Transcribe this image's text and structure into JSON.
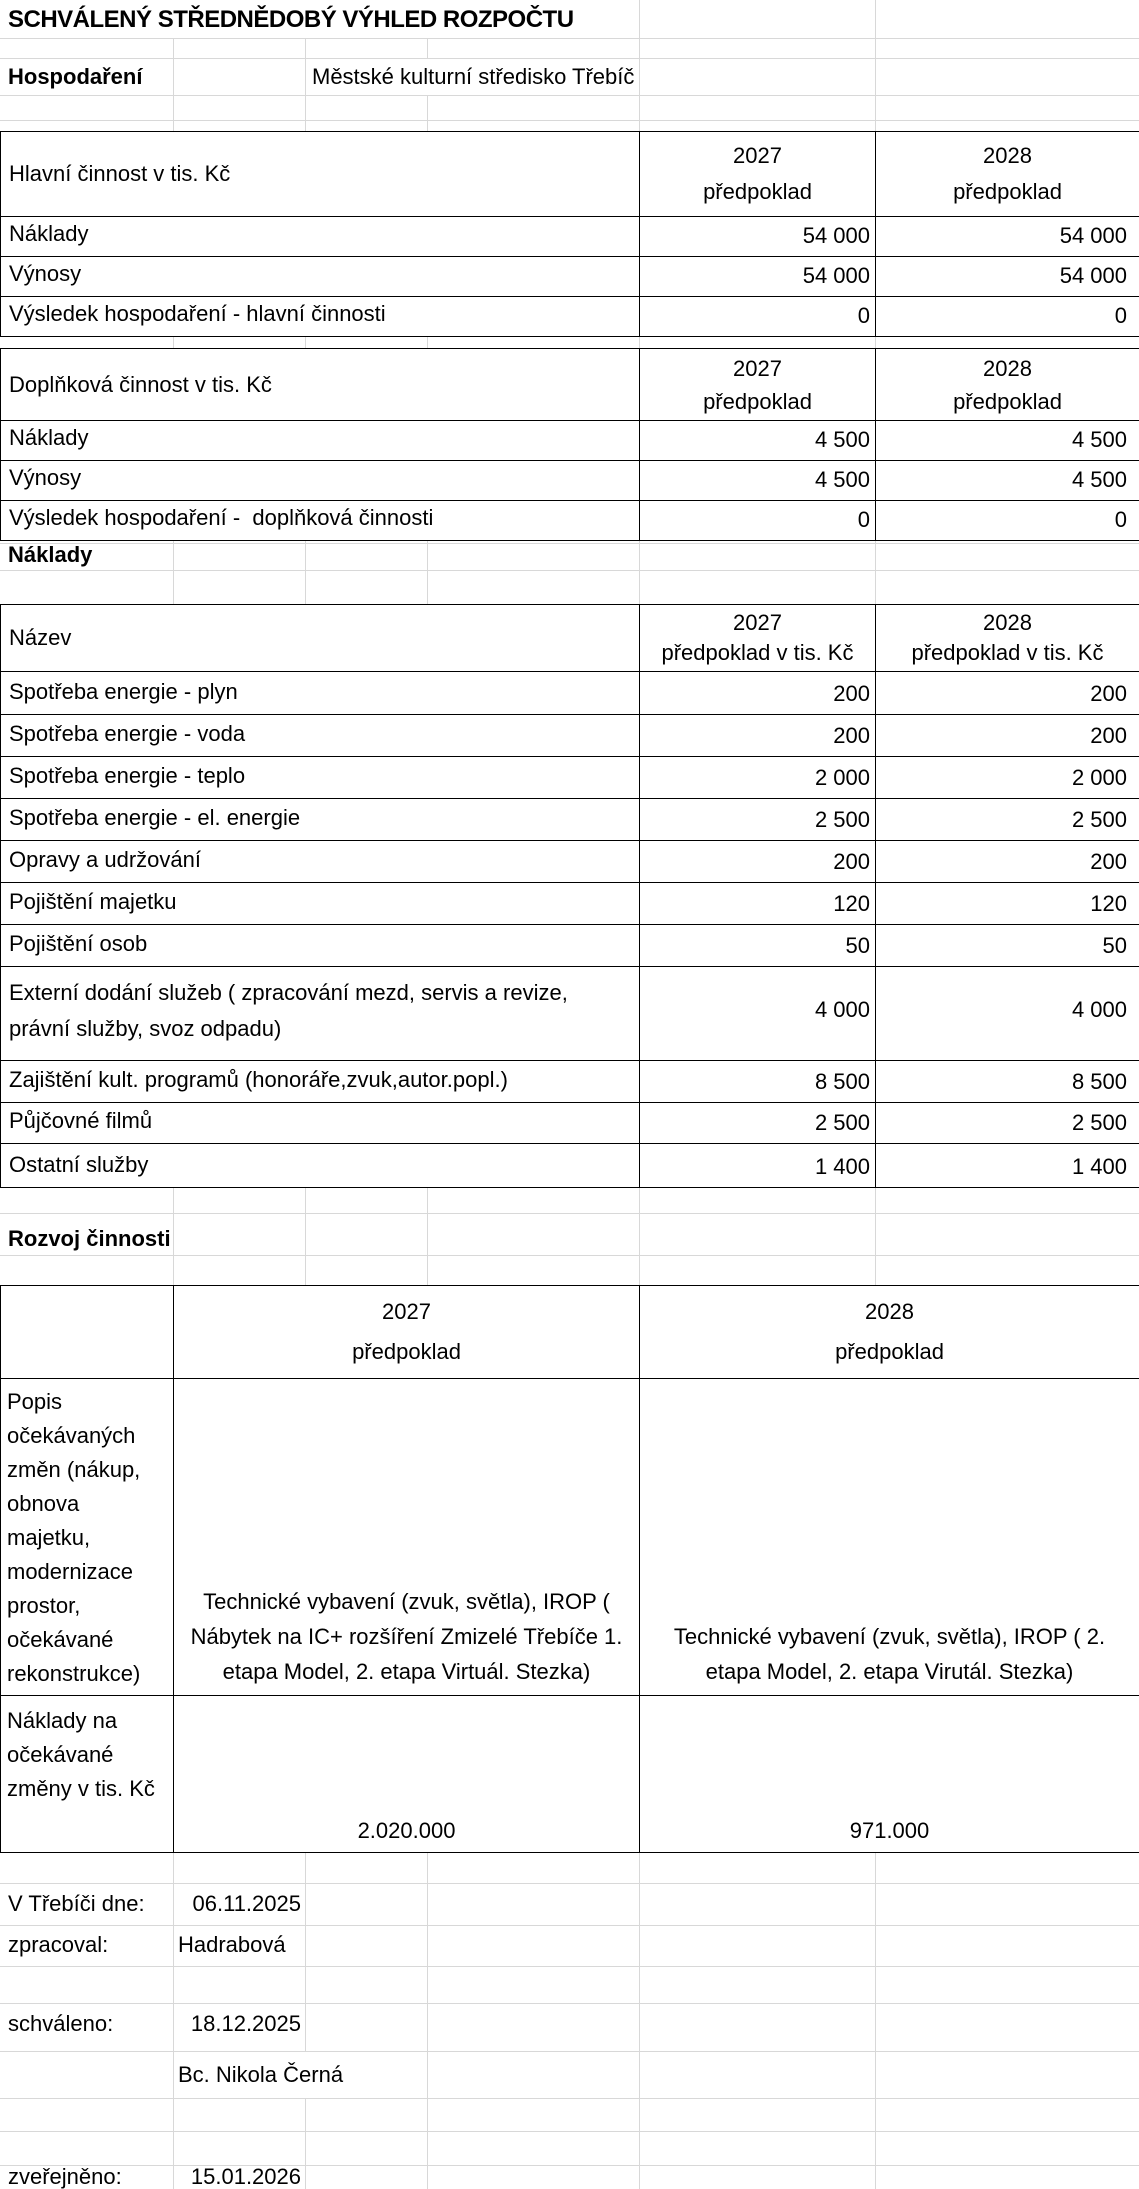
{
  "title": "SCHVÁLENÝ STŘEDNĚDOBÝ VÝHLED ROZPOČTU",
  "org": {
    "label": "Hospodaření",
    "name": "Městské kulturní středisko Třebíč"
  },
  "colors": {
    "header_fill": "#d6e3bc",
    "gridline": "#d8d8d8",
    "table_border": "#000000"
  },
  "tables": {
    "main": {
      "label": "Hlavní činnost v tis. Kč",
      "columns": [
        {
          "year": "2027",
          "sub": "předpoklad"
        },
        {
          "year": "2028",
          "sub": "předpoklad"
        }
      ],
      "rows": [
        {
          "label": "Náklady",
          "y2027": "54 000",
          "y2028": "54 000"
        },
        {
          "label": "Výnosy",
          "y2027": "54 000",
          "y2028": "54 000"
        },
        {
          "label": "Výsledek hospodaření - hlavní činnosti",
          "y2027": "0",
          "y2028": "0"
        }
      ]
    },
    "secondary": {
      "label": "Doplňková činnost v tis. Kč",
      "columns": [
        {
          "year": "2027",
          "sub": "předpoklad"
        },
        {
          "year": "2028",
          "sub": "předpoklad"
        }
      ],
      "rows": [
        {
          "label": "Náklady",
          "y2027": "4 500",
          "y2028": "4 500"
        },
        {
          "label": "Výnosy",
          "y2027": "4 500",
          "y2028": "4 500"
        },
        {
          "label": "Výsledek hospodaření -  doplňková činnosti",
          "y2027": "0",
          "y2028": "0"
        }
      ]
    },
    "costs": {
      "section_title": "Náklady",
      "label": "Název",
      "columns": [
        {
          "year": "2027",
          "sub": "předpoklad v tis. Kč"
        },
        {
          "year": "2028",
          "sub": "předpoklad v tis. Kč"
        }
      ],
      "rows": [
        {
          "label": "Spotřeba energie - plyn",
          "y2027": "200",
          "y2028": "200"
        },
        {
          "label": "Spotřeba energie - voda",
          "y2027": "200",
          "y2028": "200"
        },
        {
          "label": "Spotřeba energie - teplo",
          "y2027": "2 000",
          "y2028": "2 000"
        },
        {
          "label": "Spotřeba energie - el. energie",
          "y2027": "2 500",
          "y2028": "2 500"
        },
        {
          "label": "Opravy a udržování",
          "y2027": "200",
          "y2028": "200"
        },
        {
          "label": "Pojištění majetku",
          "y2027": "120",
          "y2028": "120"
        },
        {
          "label": "Pojištění osob",
          "y2027": "50",
          "y2028": "50"
        },
        {
          "label": "Externí dodání služeb ( zpracování mezd, servis a revize, právní služby, svoz odpadu)",
          "y2027": "4 000",
          "y2028": "4 000"
        },
        {
          "label": "Zajištění kult. programů (honoráře,zvuk,autor.popl.)",
          "y2027": "8 500",
          "y2028": "8 500"
        },
        {
          "label": "Půjčovné filmů",
          "y2027": "2 500",
          "y2028": "2 500"
        },
        {
          "label": "Ostatní služby",
          "y2027": "1 400",
          "y2028": "1 400"
        }
      ]
    },
    "development": {
      "section_title": "Rozvoj činnosti",
      "columns": [
        {
          "year": "2027",
          "sub": "předpoklad"
        },
        {
          "year": "2028",
          "sub": "předpoklad"
        }
      ],
      "description_row": {
        "label": "Popis očekávaných změn (nákup, obnova majetku, modernizace prostor, očekávané rekonstrukce)",
        "y2027": "Technické vybavení (zvuk, světla), IROP ( Nábytek na IC+ rozšíření Zmizelé Třebíče 1. etapa Model, 2. etapa Virtuál. Stezka)",
        "y2028": "Technické vybavení (zvuk, světla), IROP ( 2. etapa Model, 2. etapa Virutál. Stezka)"
      },
      "cost_row": {
        "label": "Náklady na očekávané změny v tis. Kč",
        "y2027": "2.020.000",
        "y2028": "971.000"
      }
    }
  },
  "footer": {
    "rows": [
      {
        "label": "V Třebíči dne:",
        "value": "06.11.2025"
      },
      {
        "label": "zpracoval:",
        "value": "Hadrabová"
      },
      {
        "label": "schváleno:",
        "value": "18.12.2025"
      },
      {
        "label": "",
        "value": "Bc. Nikola Černá"
      },
      {
        "label": "zveřejněno:",
        "value": "15.01.2026"
      }
    ]
  }
}
